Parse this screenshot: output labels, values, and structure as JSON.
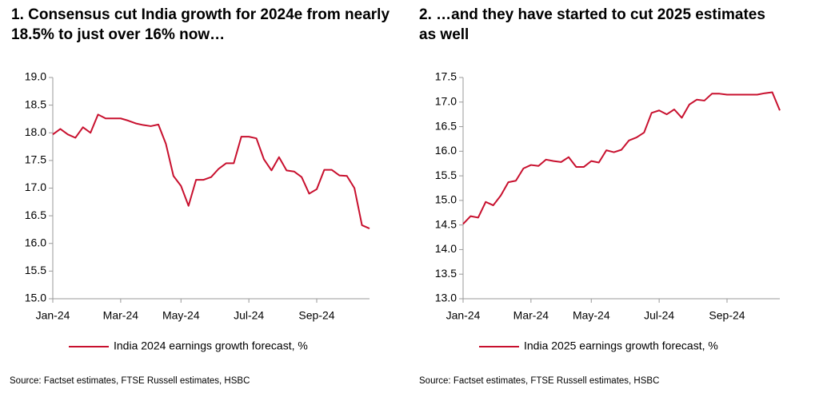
{
  "chart_data": [
    {
      "type": "line",
      "title": "1. Consensus cut India growth for 2024e from nearly 18.5% to just over 16% now…",
      "categories": [
        "Jan-24",
        null,
        null,
        null,
        null,
        null,
        null,
        null,
        null,
        "Mar-24",
        null,
        null,
        null,
        null,
        null,
        null,
        null,
        "May-24",
        null,
        null,
        null,
        null,
        null,
        null,
        null,
        null,
        "Jul-24",
        null,
        null,
        null,
        null,
        null,
        null,
        null,
        null,
        "Sep-24",
        null,
        null,
        null,
        null,
        null,
        null,
        null
      ],
      "series": [
        {
          "name": "India 2024 earnings growth forecast, %",
          "color": "#c8102e",
          "values": [
            17.97,
            18.07,
            17.97,
            17.91,
            18.1,
            18.0,
            18.33,
            18.26,
            18.26,
            18.26,
            18.22,
            18.17,
            18.14,
            18.12,
            18.15,
            17.8,
            17.22,
            17.04,
            16.68,
            17.15,
            17.15,
            17.2,
            17.35,
            17.45,
            17.45,
            17.93,
            17.93,
            17.9,
            17.52,
            17.32,
            17.56,
            17.32,
            17.3,
            17.2,
            16.9,
            16.98,
            17.33,
            17.33,
            17.23,
            17.22,
            17.0,
            16.33,
            16.27
          ]
        }
      ],
      "ylim": [
        15,
        19
      ],
      "yticks": [
        {
          "value": 15,
          "label": "15.0"
        },
        15.5,
        {
          "value": 16,
          "label": "16.0"
        },
        16.5,
        {
          "value": 17,
          "label": "17.0"
        },
        17.5,
        {
          "value": 18,
          "label": "18.0"
        },
        18.5,
        {
          "value": 19,
          "label": "19.0"
        }
      ],
      "grid": false,
      "source": "Source: Factset estimates, FTSE Russell estimates, HSBC"
    },
    {
      "type": "line",
      "title": "2. …and they have started to cut 2025 estimates as well",
      "categories": [
        "Jan-24",
        null,
        null,
        null,
        null,
        null,
        null,
        null,
        null,
        "Mar-24",
        null,
        null,
        null,
        null,
        null,
        null,
        null,
        "May-24",
        null,
        null,
        null,
        null,
        null,
        null,
        null,
        null,
        "Jul-24",
        null,
        null,
        null,
        null,
        null,
        null,
        null,
        null,
        "Sep-24",
        null,
        null,
        null,
        null,
        null,
        null,
        null
      ],
      "series": [
        {
          "name": "India 2025 earnings growth forecast, %",
          "color": "#c8102e",
          "values": [
            14.52,
            14.68,
            14.65,
            14.97,
            14.9,
            15.1,
            15.37,
            15.4,
            15.65,
            15.72,
            15.7,
            15.83,
            15.8,
            15.78,
            15.88,
            15.68,
            15.68,
            15.8,
            15.77,
            16.02,
            15.98,
            16.03,
            16.22,
            16.28,
            16.38,
            16.78,
            16.83,
            16.75,
            16.85,
            16.68,
            16.95,
            17.05,
            17.03,
            17.17,
            17.17,
            17.15,
            17.15,
            17.15,
            17.15,
            17.15,
            17.18,
            17.2,
            16.83
          ]
        }
      ],
      "ylim": [
        13,
        17.5
      ],
      "yticks": [
        {
          "value": 13,
          "label": "13.0"
        },
        13.5,
        {
          "value": 14,
          "label": "14.0"
        },
        14.5,
        {
          "value": 15,
          "label": "15.0"
        },
        15.5,
        {
          "value": 16,
          "label": "16.0"
        },
        16.5,
        {
          "value": 17,
          "label": "17.0"
        },
        17.5
      ],
      "grid": false,
      "source": "Source: Factset estimates, FTSE Russell estimates, HSBC"
    }
  ]
}
